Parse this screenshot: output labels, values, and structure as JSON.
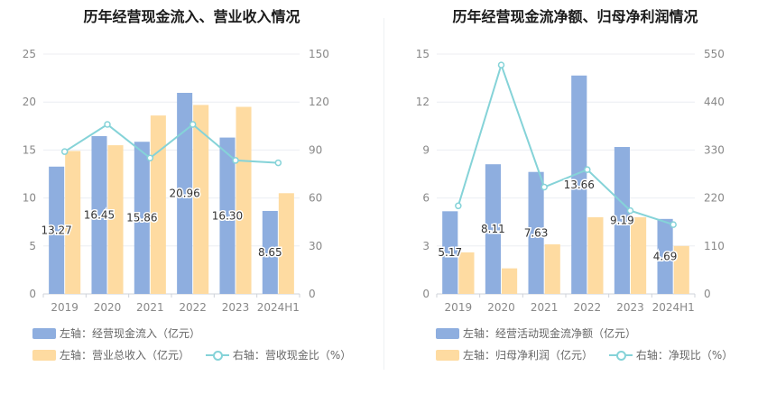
{
  "chart_data": [
    {
      "type": "bar",
      "title": "历年经营现金流入、营业收入情况",
      "categories": [
        "2019",
        "2020",
        "2021",
        "2022",
        "2023",
        "2024H1"
      ],
      "left_axis": {
        "ylim": [
          0,
          25
        ],
        "ticks": [
          "0",
          "5",
          "10",
          "15",
          "20",
          "25"
        ]
      },
      "right_axis": {
        "ylim": [
          0,
          150
        ],
        "ticks": [
          "0",
          "30",
          "60",
          "90",
          "120",
          "150"
        ]
      },
      "series": [
        {
          "name": "左轴：经营现金流入（亿元）",
          "kind": "bar",
          "axis": "left",
          "color": "#8eaedf",
          "values": [
            13.27,
            16.45,
            15.86,
            20.96,
            16.3,
            8.65
          ],
          "labels": [
            "13.27",
            "16.45",
            "15.86",
            "20.96",
            "16.30",
            "8.65"
          ]
        },
        {
          "name": "左轴：营业总收入（亿元）",
          "kind": "bar",
          "axis": "left",
          "color": "#fedba1",
          "values": [
            14.9,
            15.5,
            18.6,
            19.7,
            19.5,
            10.5
          ]
        },
        {
          "name": "右轴：营收现金比（%）",
          "kind": "line",
          "axis": "right",
          "color": "#85d3d8",
          "values": [
            89.0,
            106.0,
            85.0,
            106.0,
            83.5,
            82.0
          ]
        }
      ],
      "legend": [
        "左轴：经营现金流入（亿元）",
        "左轴：营业总收入（亿元）",
        "右轴：营收现金比（%）"
      ]
    },
    {
      "type": "bar",
      "title": "历年经营现金流净额、归母净利润情况",
      "categories": [
        "2019",
        "2020",
        "2021",
        "2022",
        "2023",
        "2024H1"
      ],
      "left_axis": {
        "ylim": [
          0,
          15
        ],
        "ticks": [
          "0",
          "3",
          "6",
          "9",
          "12",
          "15"
        ]
      },
      "right_axis": {
        "ylim": [
          0,
          550
        ],
        "ticks": [
          "0",
          "110",
          "220",
          "330",
          "440",
          "550"
        ]
      },
      "series": [
        {
          "name": "左轴：经营活动现金流净额（亿元）",
          "kind": "bar",
          "axis": "left",
          "color": "#8eaedf",
          "values": [
            5.17,
            8.11,
            7.63,
            13.66,
            9.19,
            4.69
          ],
          "labels": [
            "5.17",
            "8.11",
            "7.63",
            "13.66",
            "9.19",
            "4.69"
          ]
        },
        {
          "name": "左轴：归母净利润（亿元）",
          "kind": "bar",
          "axis": "left",
          "color": "#fedba1",
          "values": [
            2.6,
            1.6,
            3.1,
            4.8,
            4.8,
            3.0
          ]
        },
        {
          "name": "右轴：净现比（%）",
          "kind": "line",
          "axis": "right",
          "color": "#85d3d8",
          "values": [
            202.0,
            525.0,
            245.0,
            285.0,
            191.0,
            159.0
          ]
        }
      ],
      "legend": [
        "左轴：经营活动现金流净额（亿元）",
        "左轴：归母净利润（亿元）",
        "右轴：净现比（%）"
      ]
    }
  ]
}
